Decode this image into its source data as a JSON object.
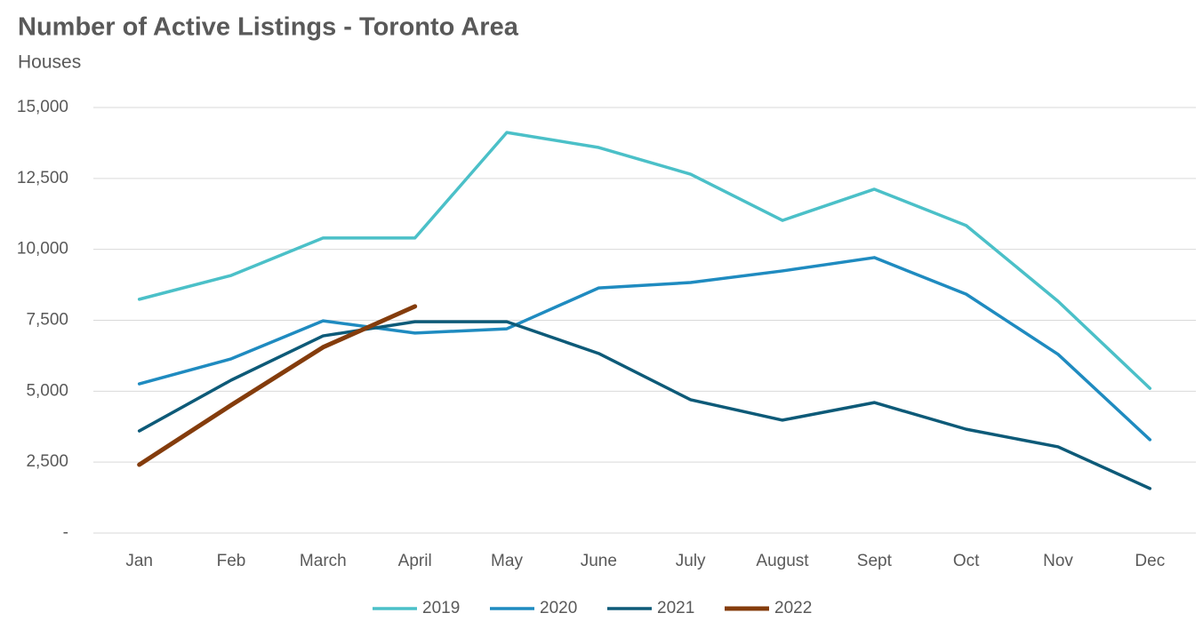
{
  "chart_data": {
    "type": "line",
    "title": "Number of Active Listings - Toronto Area",
    "subtitle": "Houses",
    "categories": [
      "Jan",
      "Feb",
      "March",
      "April",
      "May",
      "June",
      "July",
      "August",
      "Sept",
      "Oct",
      "Nov",
      "Dec"
    ],
    "series": [
      {
        "name": "2019",
        "color": "#4bc0c8",
        "values": [
          8240,
          9080,
          10400,
          10400,
          14120,
          13590,
          12650,
          11020,
          12120,
          10840,
          8170,
          5100
        ]
      },
      {
        "name": "2020",
        "color": "#1f8bc0",
        "values": [
          5260,
          6140,
          7480,
          7050,
          7200,
          8640,
          8830,
          9240,
          9710,
          8420,
          6300,
          3290
        ]
      },
      {
        "name": "2021",
        "color": "#0d5a78",
        "values": [
          3600,
          5390,
          6950,
          7450,
          7450,
          6330,
          4700,
          3980,
          4600,
          3660,
          3040,
          1570
        ]
      },
      {
        "name": "2022",
        "color": "#843c0c",
        "values": [
          2410,
          4510,
          6550,
          7990,
          null,
          null,
          null,
          null,
          null,
          null,
          null,
          null
        ]
      }
    ],
    "ylim": [
      0,
      15000
    ],
    "yticks": [
      {
        "value": 0,
        "label": "-"
      },
      {
        "value": 2500,
        "label": "2,500"
      },
      {
        "value": 5000,
        "label": "5,000"
      },
      {
        "value": 7500,
        "label": "7,500"
      },
      {
        "value": 10000,
        "label": "10,000"
      },
      {
        "value": 12500,
        "label": "12,500"
      },
      {
        "value": 15000,
        "label": "15,000"
      }
    ],
    "grid": true,
    "legend": "bottom"
  }
}
